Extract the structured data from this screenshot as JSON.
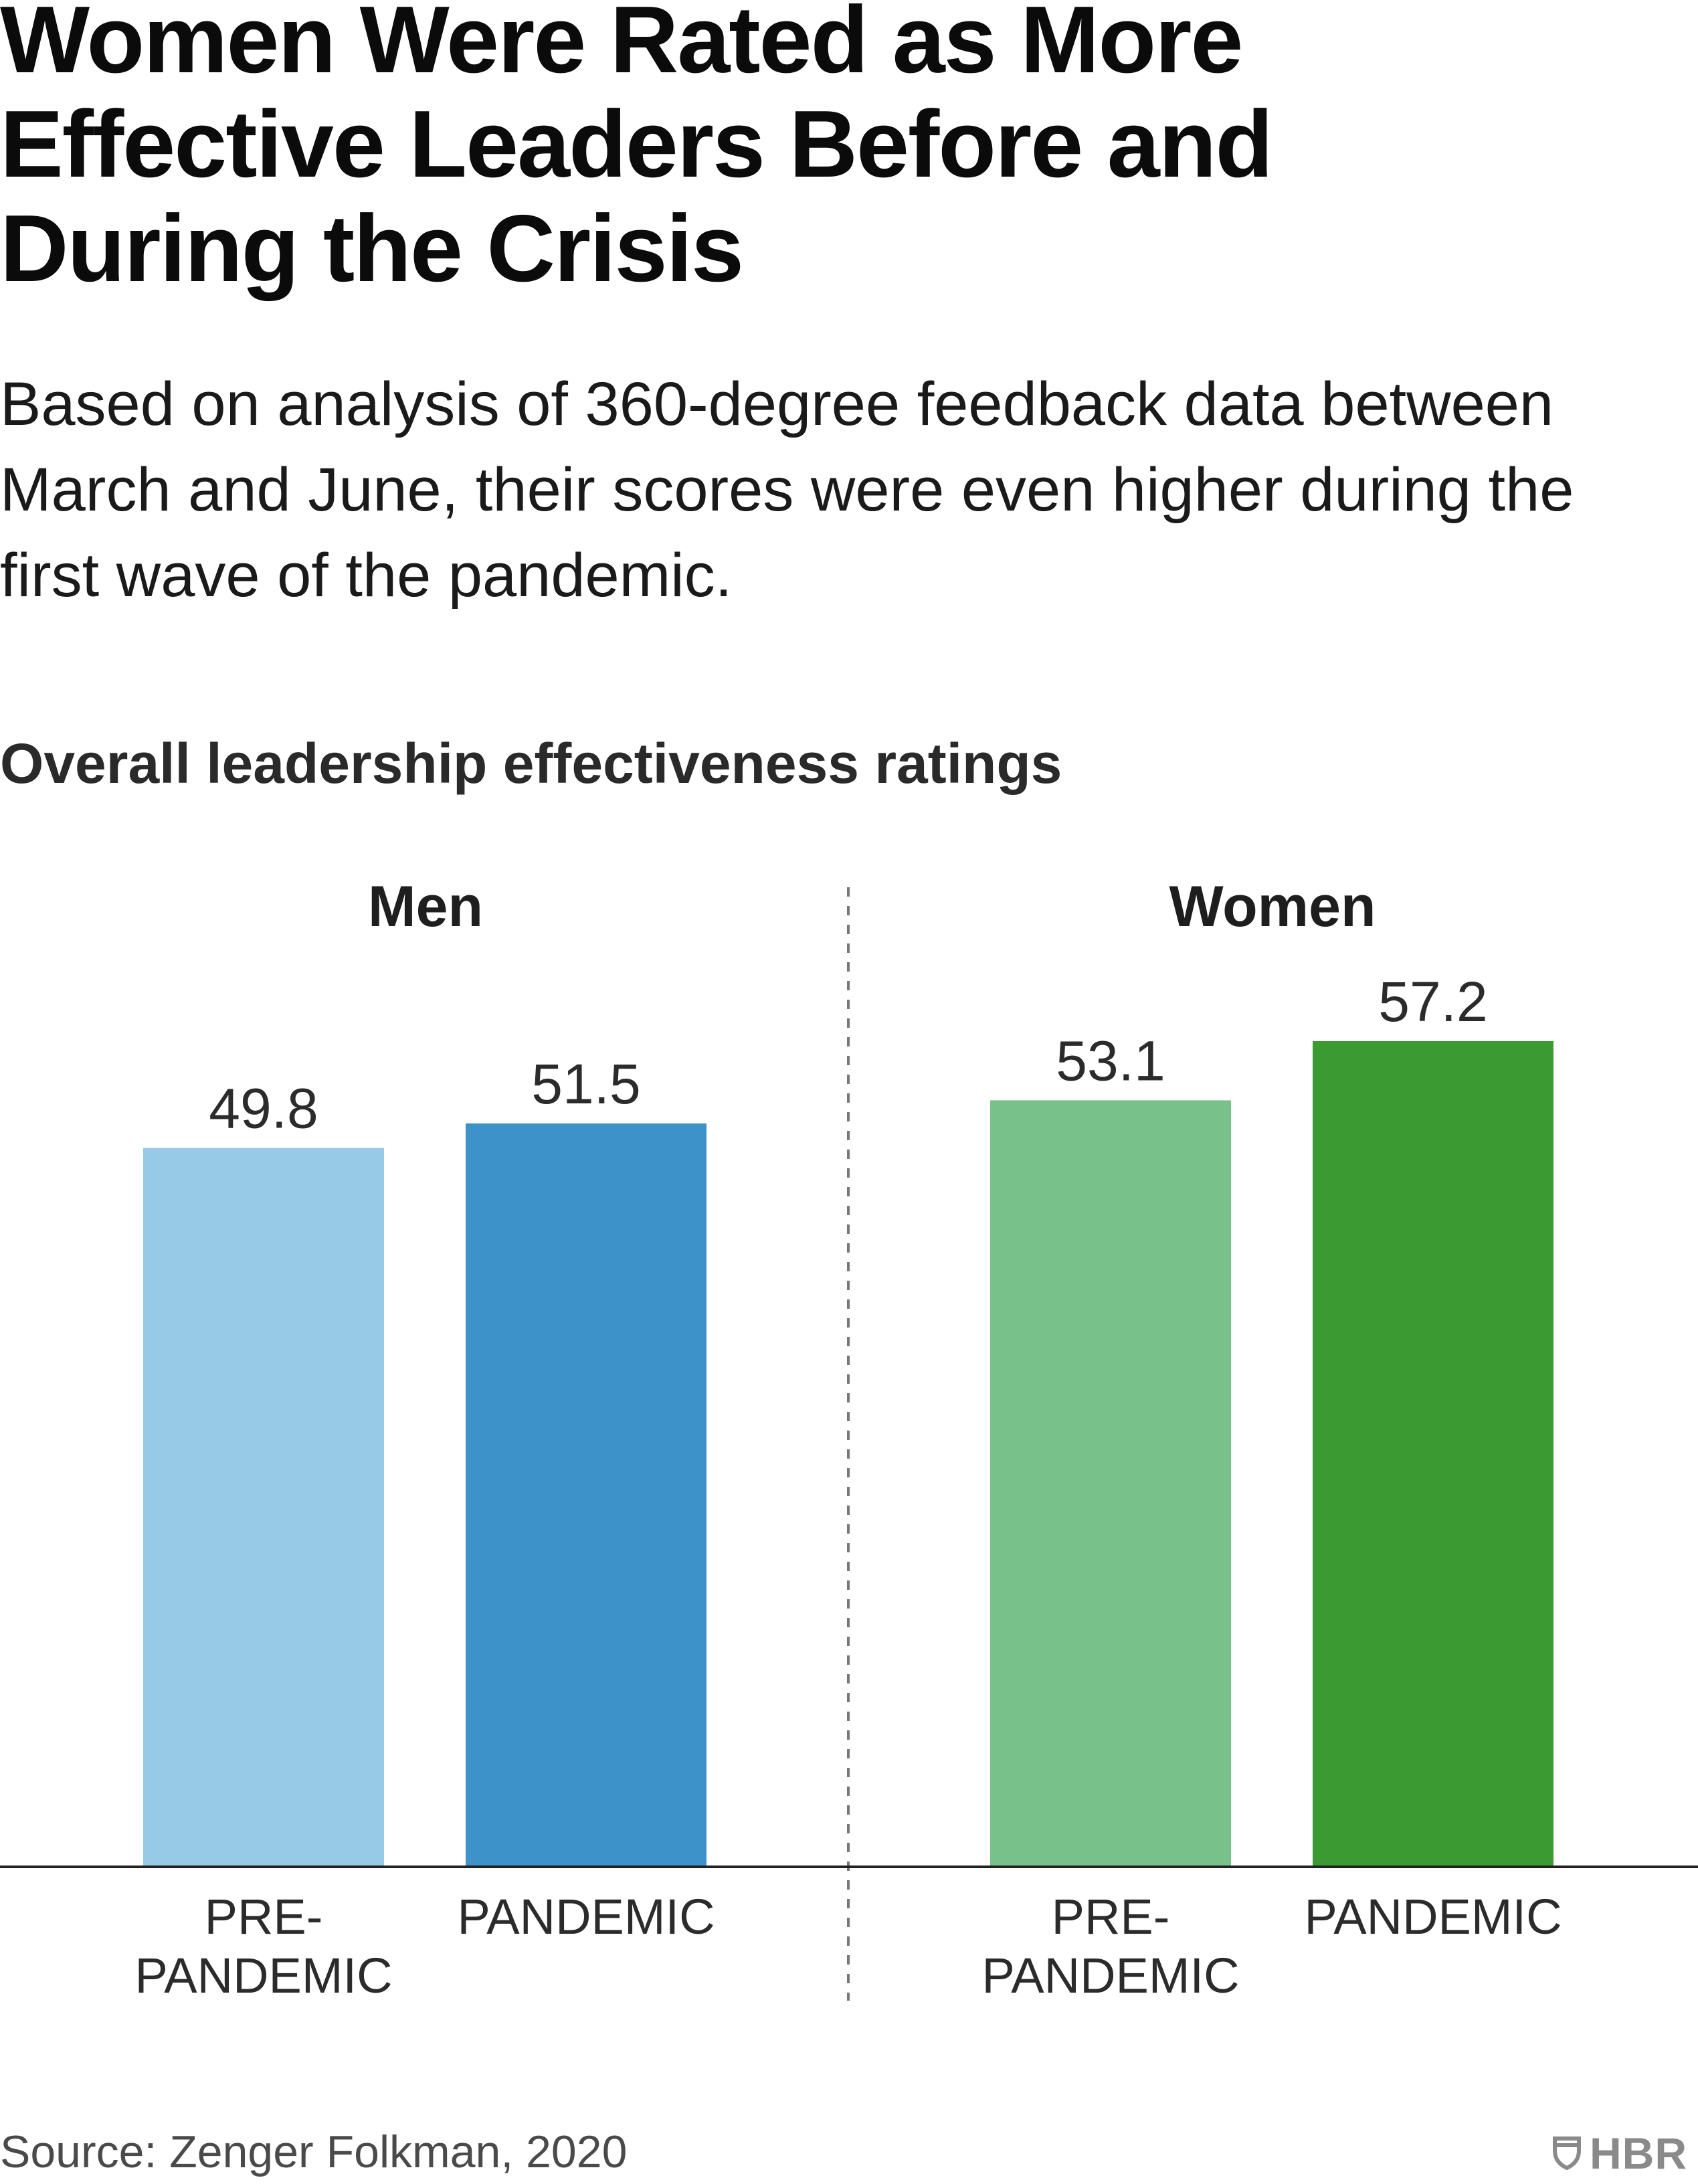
{
  "header": {
    "title": "Women Were Rated as More Effective Leaders Before and During the Crisis",
    "subtitle": "Based on analysis of 360-degree feedback data between March and June, their scores were even higher during the first wave of the pandemic."
  },
  "chart_data": {
    "type": "bar",
    "title": "Overall leadership effectiveness ratings",
    "xlabel": "",
    "ylabel": "",
    "ylim": [
      0,
      57.2
    ],
    "grid": false,
    "groups": [
      {
        "name": "Men",
        "categories": [
          [
            "PRE-",
            "PANDEMIC"
          ],
          [
            "PANDEMIC"
          ]
        ],
        "values": [
          49.8,
          51.5
        ],
        "value_labels": [
          "49.8",
          "51.5"
        ],
        "colors": [
          "#97cae6",
          "#3c92c9"
        ]
      },
      {
        "name": "Women",
        "categories": [
          [
            "PRE-",
            "PANDEMIC"
          ],
          [
            "PANDEMIC"
          ]
        ],
        "values": [
          53.1,
          57.2
        ],
        "value_labels": [
          "53.1",
          "57.2"
        ],
        "colors": [
          "#79c18a",
          "#3c9a32"
        ]
      }
    ]
  },
  "footer": {
    "source": "Source: Zenger Folkman, 2020",
    "logo": "HBR",
    "logo_icon": "shield-icon"
  }
}
